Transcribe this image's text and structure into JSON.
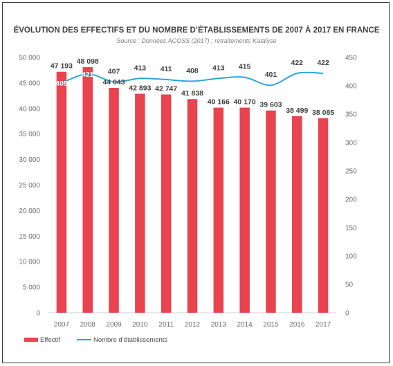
{
  "chart_data": {
    "type": "bar",
    "title": "ÉVOLUTION DES EFFECTIFS ET DU NOMBRE D’ÉTABLISSEMENTS DE 2007 À 2017 EN FRANCE",
    "subtitle": "Source : Données ACOSS (2017) ; retraitements Katalyse",
    "categories": [
      "2007",
      "2008",
      "2009",
      "2010",
      "2011",
      "2012",
      "2013",
      "2014",
      "2015",
      "2016",
      "2017"
    ],
    "series": [
      {
        "name": "Effectif",
        "type": "bar",
        "axis": "left",
        "color": "#e8434f",
        "values": [
          47193,
          48098,
          44043,
          42893,
          42747,
          41838,
          40166,
          40170,
          39603,
          38499,
          38085
        ],
        "labels": [
          "47 193",
          "48 098",
          "44 043",
          "42 893",
          "42 747",
          "41 838",
          "40 166",
          "40 170",
          "39 603",
          "38 499",
          "38 085"
        ]
      },
      {
        "name": "Nombre d’établissements",
        "type": "line",
        "axis": "right",
        "color": "#2aa7d8",
        "values": [
          405,
          421,
          407,
          413,
          411,
          408,
          413,
          415,
          401,
          422,
          422
        ],
        "labels": [
          "405",
          "421",
          "407",
          "413",
          "411",
          "408",
          "413",
          "415",
          "401",
          "422",
          "422"
        ]
      }
    ],
    "y_left": {
      "min": 0,
      "max": 50000,
      "step": 5000,
      "tick_labels": [
        "0",
        "5 000",
        "10 000",
        "15 000",
        "20 000",
        "25 000",
        "30 000",
        "35 000",
        "40 000",
        "45 000",
        "50 000"
      ]
    },
    "y_right": {
      "min": 0,
      "max": 450,
      "step": 50,
      "tick_labels": [
        "0",
        "50",
        "100",
        "150",
        "200",
        "250",
        "300",
        "350",
        "400",
        "450"
      ]
    },
    "grid": false,
    "legend": "bottom-left"
  }
}
